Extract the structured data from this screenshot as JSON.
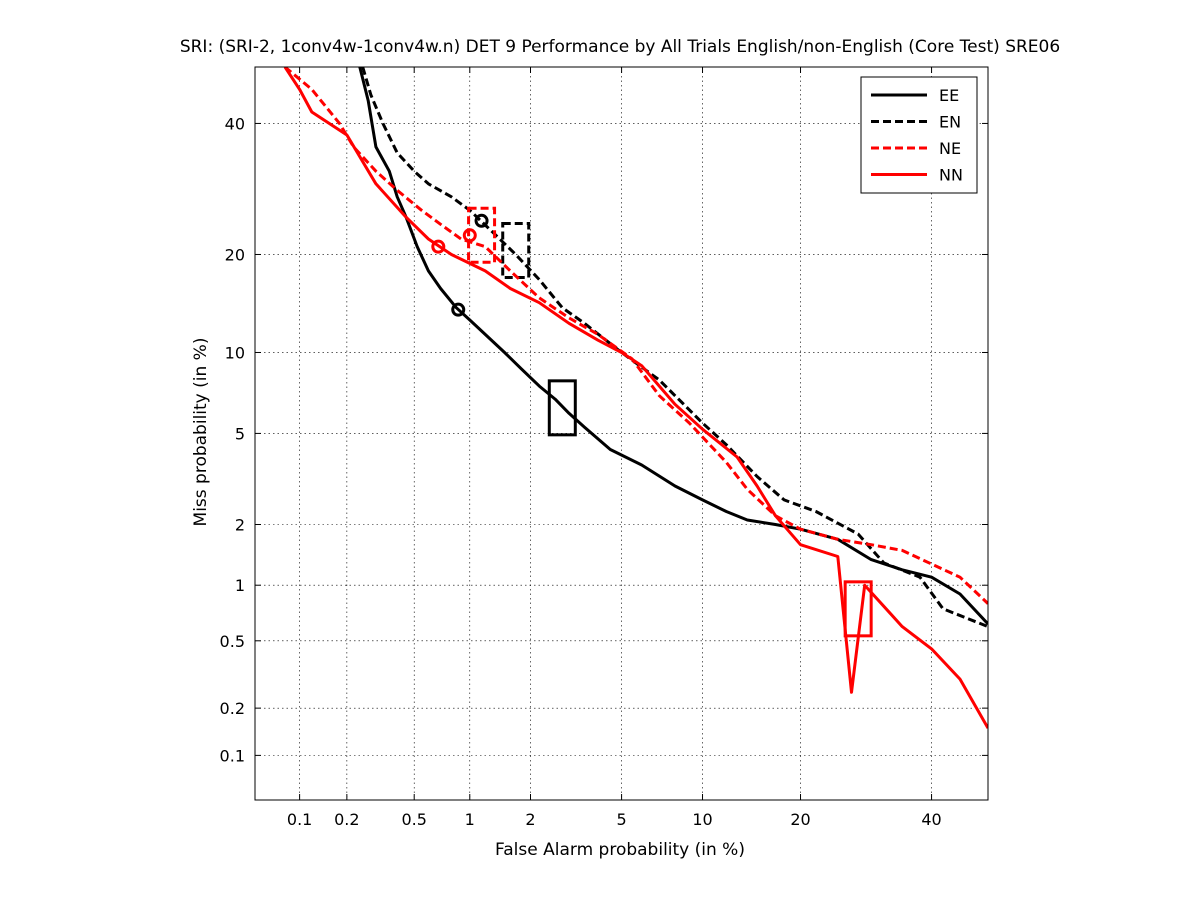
{
  "chart_data": {
    "type": "line",
    "title": "SRI: (SRI-2, 1conv4w-1conv4w.n) DET 9 Performance by All Trials English/non-English (Core Test) SRE06",
    "xlabel": "False Alarm probability (in %)",
    "ylabel": "Miss probability (in %)",
    "x_scale": "probit",
    "y_scale": "probit",
    "xlim": [
      0.05,
      50
    ],
    "ylim": [
      0.05,
      50
    ],
    "x_ticks": [
      0.1,
      0.2,
      0.5,
      1,
      2,
      5,
      10,
      20,
      40
    ],
    "x_tick_labels": [
      "0.1",
      "0.2",
      "0.5",
      "1",
      "2",
      "5",
      "10",
      "20",
      "40"
    ],
    "y_ticks": [
      0.1,
      0.2,
      0.5,
      1,
      2,
      5,
      10,
      20,
      40
    ],
    "y_tick_labels": [
      "0.1",
      "0.2",
      "0.5",
      "1",
      "2",
      "5",
      "10",
      "20",
      "40"
    ],
    "grid": true,
    "legend_position": "top-right",
    "series": [
      {
        "name": "EE",
        "color": "#000000",
        "dash": "solid",
        "points": [
          [
            0.24,
            50
          ],
          [
            0.27,
            44
          ],
          [
            0.3,
            36
          ],
          [
            0.36,
            32
          ],
          [
            0.4,
            28
          ],
          [
            0.45,
            25
          ],
          [
            0.52,
            21
          ],
          [
            0.6,
            18
          ],
          [
            0.7,
            16
          ],
          [
            0.85,
            14
          ],
          [
            1.0,
            12.8
          ],
          [
            1.2,
            11.5
          ],
          [
            1.5,
            10
          ],
          [
            1.8,
            8.8
          ],
          [
            2.2,
            7.6
          ],
          [
            2.6,
            6.8
          ],
          [
            3.0,
            6.0
          ],
          [
            3.5,
            5.3
          ],
          [
            4.5,
            4.3
          ],
          [
            6,
            3.7
          ],
          [
            8,
            3.0
          ],
          [
            10,
            2.6
          ],
          [
            12,
            2.3
          ],
          [
            14,
            2.1
          ],
          [
            17,
            2.0
          ],
          [
            20,
            1.9
          ],
          [
            25,
            1.7
          ],
          [
            30,
            1.35
          ],
          [
            35,
            1.2
          ],
          [
            40,
            1.1
          ],
          [
            45,
            0.9
          ],
          [
            50,
            0.62
          ]
        ],
        "min_dcf": {
          "x": 0.87,
          "y": 13.8,
          "marker": "circle"
        },
        "act_dcf": {
          "x": 2.8,
          "y": 6.3,
          "marker": "box"
        }
      },
      {
        "name": "EN",
        "color": "#000000",
        "dash": "dashed",
        "points": [
          [
            0.25,
            50
          ],
          [
            0.28,
            45
          ],
          [
            0.33,
            40
          ],
          [
            0.4,
            35
          ],
          [
            0.5,
            32
          ],
          [
            0.6,
            30
          ],
          [
            0.8,
            28
          ],
          [
            1.0,
            26
          ],
          [
            1.3,
            23
          ],
          [
            1.7,
            20
          ],
          [
            2.2,
            17
          ],
          [
            2.8,
            14
          ],
          [
            3.5,
            12.5
          ],
          [
            5,
            10
          ],
          [
            7,
            8
          ],
          [
            10,
            5.5
          ],
          [
            12,
            4.5
          ],
          [
            15,
            3.3
          ],
          [
            18,
            2.6
          ],
          [
            22,
            2.3
          ],
          [
            28,
            1.8
          ],
          [
            32,
            1.3
          ],
          [
            38,
            1.1
          ],
          [
            42,
            0.75
          ],
          [
            50,
            0.6
          ]
        ],
        "min_dcf": {
          "x": 1.15,
          "y": 24.5,
          "marker": "circle"
        },
        "act_dcf": {
          "x": 1.7,
          "y": 20.5,
          "marker": "box"
        }
      },
      {
        "name": "NE",
        "color": "#ff0000",
        "dash": "dashed",
        "points": [
          [
            0.08,
            50
          ],
          [
            0.12,
            46
          ],
          [
            0.18,
            40
          ],
          [
            0.22,
            36
          ],
          [
            0.3,
            32
          ],
          [
            0.4,
            29
          ],
          [
            0.55,
            26
          ],
          [
            0.7,
            24
          ],
          [
            0.9,
            22
          ],
          [
            1.2,
            21
          ],
          [
            1.6,
            18
          ],
          [
            2.2,
            15
          ],
          [
            3,
            13
          ],
          [
            4,
            11.5
          ],
          [
            5.5,
            9.5
          ],
          [
            7,
            7
          ],
          [
            9,
            5.5
          ],
          [
            12,
            3.8
          ],
          [
            14,
            2.9
          ],
          [
            17,
            2.2
          ],
          [
            20,
            1.9
          ],
          [
            25,
            1.7
          ],
          [
            30,
            1.6
          ],
          [
            35,
            1.5
          ],
          [
            45,
            1.1
          ],
          [
            50,
            0.8
          ]
        ],
        "min_dcf": {
          "x": 1.0,
          "y": 22.5,
          "marker": "circle"
        },
        "act_dcf": {
          "x": 1.15,
          "y": 22.5,
          "marker": "box"
        }
      },
      {
        "name": "NN",
        "color": "#ff0000",
        "dash": "solid",
        "points": [
          [
            0.08,
            50
          ],
          [
            0.1,
            46
          ],
          [
            0.12,
            42
          ],
          [
            0.2,
            38
          ],
          [
            0.3,
            30
          ],
          [
            0.45,
            25
          ],
          [
            0.6,
            22
          ],
          [
            0.8,
            20
          ],
          [
            1.2,
            18
          ],
          [
            1.6,
            16
          ],
          [
            2.2,
            14.5
          ],
          [
            3,
            12.5
          ],
          [
            4,
            11
          ],
          [
            5,
            10
          ],
          [
            6,
            9
          ],
          [
            8,
            6.5
          ],
          [
            10,
            5.2
          ],
          [
            13,
            4.0
          ],
          [
            15,
            3.0
          ],
          [
            17,
            2.2
          ],
          [
            20,
            1.6
          ],
          [
            25,
            1.4
          ],
          [
            27,
            0.25
          ],
          [
            29,
            1.0
          ],
          [
            35,
            0.6
          ],
          [
            40,
            0.45
          ],
          [
            45,
            0.3
          ],
          [
            50,
            0.15
          ]
        ],
        "min_dcf": {
          "x": 0.68,
          "y": 21,
          "marker": "circle"
        },
        "act_dcf": {
          "x": 28,
          "y": 0.75,
          "marker": "box"
        }
      }
    ]
  }
}
